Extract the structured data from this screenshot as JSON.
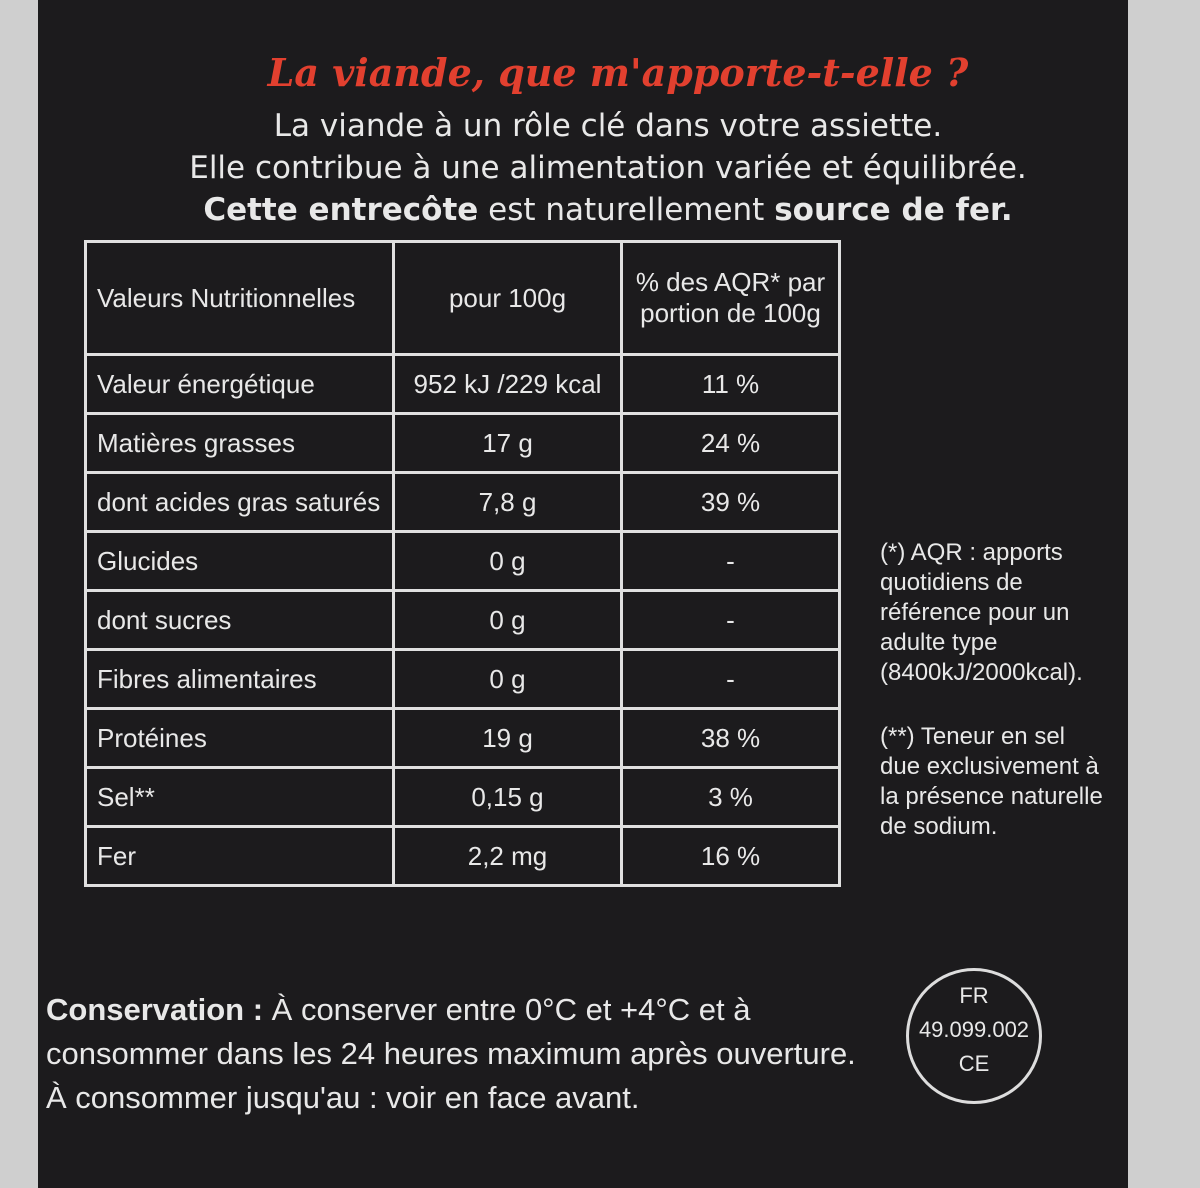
{
  "header": {
    "title": "La viande, que m'apporte-t-elle ?",
    "lines": [
      "La viande à un rôle clé dans votre assiette.",
      "Elle contribue à une alimentation variée et équilibrée."
    ],
    "last_line": [
      "Cette entrecôte",
      "est naturellement",
      "source de fer."
    ]
  },
  "table": {
    "headers": [
      "Valeurs Nutritionnelles",
      "pour 100g",
      "% des AQR* par portion de 100g"
    ],
    "rows": [
      [
        "Valeur énergétique",
        "952 kJ /229 kcal",
        "11 %"
      ],
      [
        "Matières grasses",
        "17 g",
        "24 %"
      ],
      [
        "dont acides gras saturés",
        "7,8 g",
        "39 %"
      ],
      [
        "Glucides",
        "0 g",
        "-"
      ],
      [
        "dont sucres",
        "0 g",
        "-"
      ],
      [
        "Fibres alimentaires",
        "0 g",
        "-"
      ],
      [
        "Protéines",
        "19 g",
        "38 %"
      ],
      [
        "Sel**",
        "0,15 g",
        "3 %"
      ],
      [
        "Fer",
        "2,2 mg",
        "16 %"
      ]
    ]
  },
  "footnotes": [
    "(*) AQR : apports quotidiens de référence pour un adulte type (8400kJ/2000kcal).",
    "(**) Teneur en sel due exclusivement à la présence naturelle de sodium."
  ],
  "conservation": {
    "label": "Conservation :",
    "lines": [
      "À conserver entre 0°C et +4°C et à",
      "consommer dans les 24 heures maximum après ouverture.",
      "À consommer jusqu'au : voir en face avant."
    ]
  },
  "stamp": [
    "FR",
    "49.099.002",
    "CE"
  ]
}
